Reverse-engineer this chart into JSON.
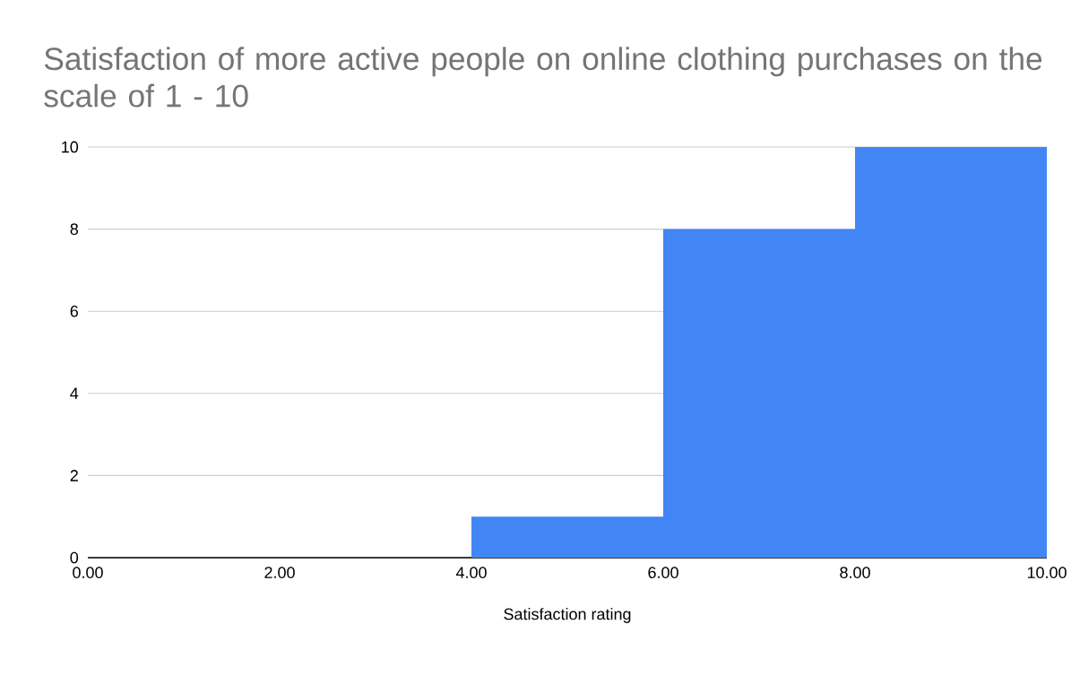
{
  "chart_data": {
    "type": "histogram",
    "title": "Satisfaction of more active people on online clothing purchases on the scale of 1 - 10",
    "xlabel": "Satisfaction rating",
    "bins": [
      0,
      2,
      4,
      6,
      8,
      10
    ],
    "values": [
      0,
      0,
      1,
      8,
      10
    ],
    "color": "#4285f4",
    "xlim": [
      0,
      10
    ],
    "ylim": [
      0,
      10
    ],
    "xticks": [
      {
        "value": 0,
        "label": "0.00"
      },
      {
        "value": 2,
        "label": "2.00"
      },
      {
        "value": 4,
        "label": "4.00"
      },
      {
        "value": 6,
        "label": "6.00"
      },
      {
        "value": 8,
        "label": "8.00"
      },
      {
        "value": 10,
        "label": "10.00"
      }
    ],
    "yticks": [
      0,
      2,
      4,
      6,
      8,
      10
    ],
    "grid": "y"
  }
}
